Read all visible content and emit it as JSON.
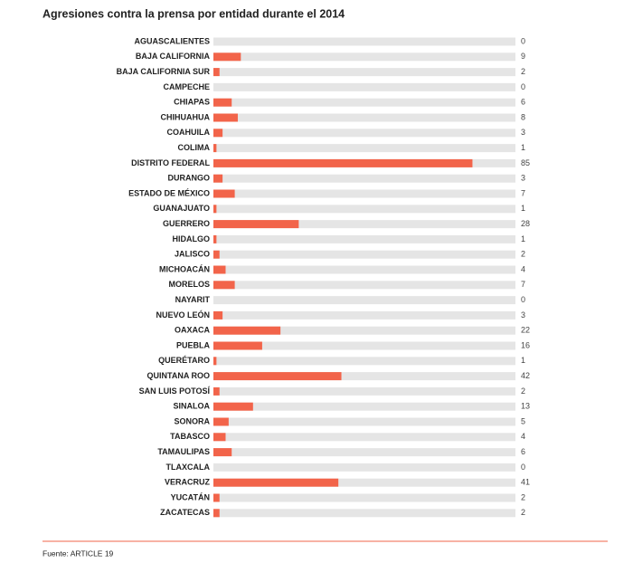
{
  "chart_data": {
    "type": "hbar",
    "title": "Agresiones contra la prensa por entidad durante el 2014",
    "categories": [
      "AGUASCALIENTES",
      "BAJA CALIFORNIA",
      "BAJA CALIFORNIA SUR",
      "CAMPECHE",
      "CHIAPAS",
      "CHIHUAHUA",
      "COAHUILA",
      "COLIMA",
      "DISTRITO FEDERAL",
      "DURANGO",
      "ESTADO DE MÉXICO",
      "GUANAJUATO",
      "GUERRERO",
      "HIDALGO",
      "JALISCO",
      "MICHOACÁN",
      "MORELOS",
      "NAYARIT",
      "NUEVO LEÓN",
      "OAXACA",
      "PUEBLA",
      "QUERÉTARO",
      "QUINTANA ROO",
      "SAN LUIS POTOSÍ",
      "SINALOA",
      "SONORA",
      "TABASCO",
      "TAMAULIPAS",
      "TLAXCALA",
      "VERACRUZ",
      "YUCATÁN",
      "ZACATECAS"
    ],
    "values": [
      0,
      9,
      2,
      0,
      6,
      8,
      3,
      1,
      85,
      3,
      7,
      1,
      28,
      1,
      2,
      4,
      7,
      0,
      3,
      22,
      16,
      1,
      42,
      2,
      13,
      5,
      4,
      6,
      0,
      41,
      2,
      2
    ],
    "color": "#f2644a",
    "track_color": "#e5e5e5",
    "source": "Fuente: ARTICLE 19"
  }
}
